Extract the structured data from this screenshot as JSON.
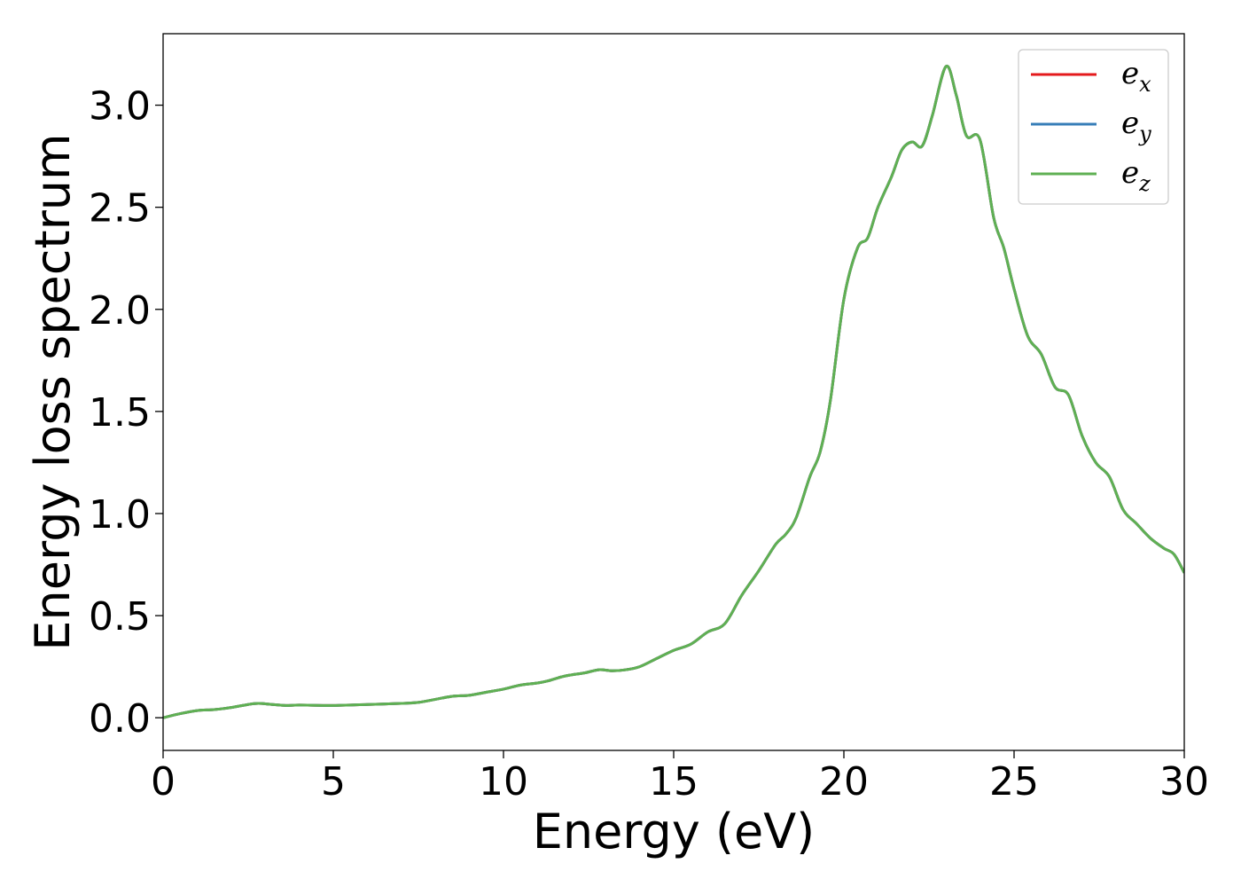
{
  "chart_data": {
    "type": "line",
    "title": "",
    "xlabel": "Energy (eV)",
    "ylabel": "Energy loss spectrum",
    "xlim": [
      0,
      30
    ],
    "ylim": [
      -0.16,
      3.35
    ],
    "xticks": [
      0,
      5,
      10,
      15,
      20,
      25,
      30
    ],
    "yticks": [
      0.0,
      0.5,
      1.0,
      1.5,
      2.0,
      2.5,
      3.0
    ],
    "xtick_labels": [
      "0",
      "5",
      "10",
      "15",
      "20",
      "25",
      "30"
    ],
    "ytick_labels": [
      "0.0",
      "0.5",
      "1.0",
      "1.5",
      "2.0",
      "2.5",
      "3.0"
    ],
    "grid": false,
    "legend_position": "top-right",
    "x": [
      0,
      0.5,
      1,
      1.5,
      2,
      2.5,
      2.8,
      3.2,
      3.6,
      4,
      5,
      6,
      7,
      7.5,
      8,
      8.5,
      9,
      9.5,
      10,
      10.5,
      11,
      11.3,
      11.7,
      12,
      12.4,
      12.8,
      13.2,
      13.6,
      14,
      14.5,
      15,
      15.5,
      16,
      16.5,
      17,
      17.5,
      18,
      18.3,
      18.6,
      19,
      19.3,
      19.6,
      20,
      20.4,
      20.7,
      21,
      21.4,
      21.7,
      22,
      22.3,
      22.6,
      23,
      23.3,
      23.6,
      24,
      24.4,
      24.7,
      25,
      25.4,
      25.8,
      26.2,
      26.6,
      27,
      27.4,
      27.8,
      28.2,
      28.6,
      29,
      29.4,
      29.7,
      30
    ],
    "series": [
      {
        "name": "e",
        "subscript": "x",
        "color": "#e41a1c",
        "values": [
          0.0,
          0.02,
          0.035,
          0.04,
          0.05,
          0.065,
          0.07,
          0.065,
          0.06,
          0.062,
          0.06,
          0.065,
          0.07,
          0.075,
          0.09,
          0.105,
          0.11,
          0.125,
          0.14,
          0.16,
          0.17,
          0.18,
          0.2,
          0.21,
          0.22,
          0.235,
          0.23,
          0.235,
          0.25,
          0.29,
          0.33,
          0.36,
          0.42,
          0.46,
          0.6,
          0.72,
          0.85,
          0.9,
          0.98,
          1.18,
          1.3,
          1.55,
          2.05,
          2.3,
          2.35,
          2.5,
          2.65,
          2.78,
          2.82,
          2.8,
          2.95,
          3.19,
          3.05,
          2.85,
          2.83,
          2.45,
          2.3,
          2.1,
          1.87,
          1.78,
          1.62,
          1.58,
          1.38,
          1.25,
          1.18,
          1.02,
          0.95,
          0.88,
          0.83,
          0.8,
          0.71
        ]
      },
      {
        "name": "e",
        "subscript": "y",
        "color": "#377eb8",
        "values": [
          0.0,
          0.02,
          0.035,
          0.04,
          0.05,
          0.065,
          0.07,
          0.065,
          0.06,
          0.062,
          0.06,
          0.065,
          0.07,
          0.075,
          0.09,
          0.105,
          0.11,
          0.125,
          0.14,
          0.16,
          0.17,
          0.18,
          0.2,
          0.21,
          0.22,
          0.235,
          0.23,
          0.235,
          0.25,
          0.29,
          0.33,
          0.36,
          0.42,
          0.46,
          0.6,
          0.72,
          0.85,
          0.9,
          0.98,
          1.18,
          1.3,
          1.55,
          2.05,
          2.3,
          2.35,
          2.5,
          2.65,
          2.78,
          2.82,
          2.8,
          2.95,
          3.19,
          3.05,
          2.85,
          2.83,
          2.45,
          2.3,
          2.1,
          1.87,
          1.78,
          1.62,
          1.58,
          1.38,
          1.25,
          1.18,
          1.02,
          0.95,
          0.88,
          0.83,
          0.8,
          0.71
        ]
      },
      {
        "name": "e",
        "subscript": "z",
        "color": "#5fb053",
        "values": [
          0.0,
          0.02,
          0.035,
          0.04,
          0.05,
          0.065,
          0.07,
          0.065,
          0.06,
          0.062,
          0.06,
          0.065,
          0.07,
          0.075,
          0.09,
          0.105,
          0.11,
          0.125,
          0.14,
          0.16,
          0.17,
          0.18,
          0.2,
          0.21,
          0.22,
          0.235,
          0.23,
          0.235,
          0.25,
          0.29,
          0.33,
          0.36,
          0.42,
          0.46,
          0.6,
          0.72,
          0.85,
          0.9,
          0.98,
          1.18,
          1.3,
          1.55,
          2.05,
          2.3,
          2.35,
          2.5,
          2.65,
          2.78,
          2.82,
          2.8,
          2.95,
          3.19,
          3.05,
          2.85,
          2.83,
          2.45,
          2.3,
          2.1,
          1.87,
          1.78,
          1.62,
          1.58,
          1.38,
          1.25,
          1.18,
          1.02,
          0.95,
          0.88,
          0.83,
          0.8,
          0.71
        ]
      }
    ]
  }
}
